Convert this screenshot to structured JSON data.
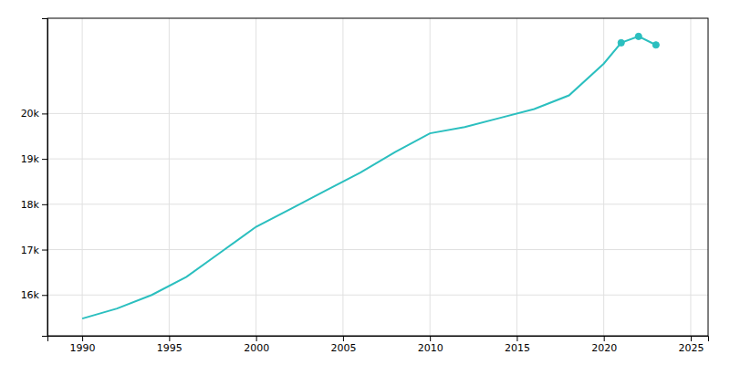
{
  "chart_data": {
    "type": "line",
    "x": [
      1990,
      1992,
      1994,
      1996,
      1998,
      2000,
      2002,
      2004,
      2006,
      2008,
      2010,
      2012,
      2014,
      2016,
      2018,
      2020,
      2021,
      2022,
      2023
    ],
    "xlim": [
      1988,
      2026
    ],
    "xticks": [
      1990,
      1995,
      2000,
      2005,
      2010,
      2015,
      2020,
      2025
    ],
    "ylim": [
      15100,
      22100
    ],
    "yticks": [
      {
        "value": 16000,
        "label": "16k"
      },
      {
        "value": 17000,
        "label": "17k"
      },
      {
        "value": 18000,
        "label": "18k"
      },
      {
        "value": 19000,
        "label": "19k"
      },
      {
        "value": 20000,
        "label": "20k"
      }
    ],
    "grid": true,
    "series": [
      {
        "type": "line",
        "color": "#2bbfbf",
        "values": [
          15480,
          15700,
          16000,
          16400,
          16950,
          17503,
          17900,
          18300,
          18700,
          19150,
          19563,
          19700,
          19900,
          20100,
          20400,
          21099,
          21559,
          21700,
          21512
        ]
      },
      {
        "type": "scatter",
        "color": "#2bbfbf",
        "marker": "circle",
        "values": [
          null,
          null,
          null,
          null,
          null,
          null,
          null,
          null,
          null,
          null,
          null,
          null,
          null,
          null,
          null,
          null,
          21559,
          21700,
          21512
        ]
      }
    ]
  }
}
